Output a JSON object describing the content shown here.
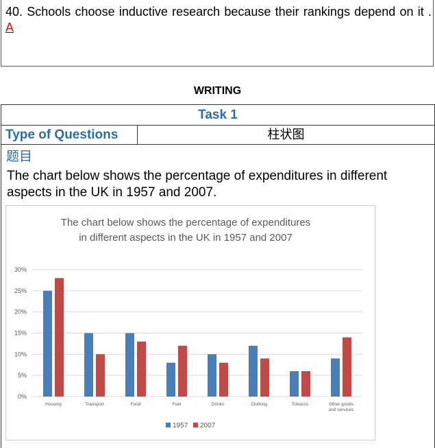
{
  "question40": {
    "text": "40. Schools choose inductive research because their rankings depend on it .",
    "answer": "A"
  },
  "section_title": "WRITING",
  "table": {
    "task": "Task 1",
    "type_label": "Type of Questions",
    "type_value": "柱状图",
    "topic_label": "题目",
    "prompt": "The chart below shows the percentage of expenditures in different aspects in the UK in 1957 and 2007."
  },
  "chart_data": {
    "type": "bar",
    "title": [
      "The chart below shows the percentage of expenditures",
      "in different aspects in the UK in 1957 and 2007"
    ],
    "categories": [
      "Housing",
      "Transport",
      "Food",
      "Fuel",
      "Drinks",
      "Clothing",
      "Tobacco",
      "Other goods and services"
    ],
    "series": [
      {
        "name": "1957",
        "color": "#4a7ebb",
        "values": [
          25,
          15,
          15,
          8,
          10,
          12,
          6,
          9
        ]
      },
      {
        "name": "2007",
        "color": "#be4b48",
        "values": [
          28,
          10,
          13,
          12,
          8,
          9,
          6,
          14
        ]
      }
    ],
    "yticks": [
      "0%",
      "5%",
      "10%",
      "15%",
      "20%",
      "25%",
      "30%"
    ],
    "ylim": [
      0,
      30
    ],
    "grid": true,
    "legend": "bottom"
  }
}
